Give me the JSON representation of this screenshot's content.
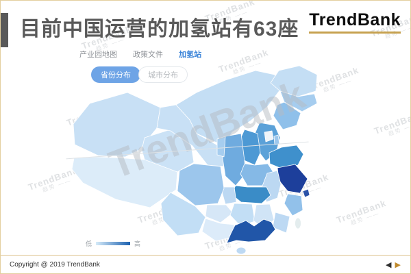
{
  "page": {
    "title": "目前中国运营的加氢站有63座",
    "logo_text": "TrendBank",
    "watermark": {
      "text": "TrendBank",
      "subtext": "趋势 ——"
    },
    "footer": {
      "copyright": "Copyright @ 2019 TrendBank",
      "prev_arrow": "◀",
      "next_arrow": "▶"
    }
  },
  "tool": {
    "tabs": [
      {
        "label": "产业园地图",
        "active": false
      },
      {
        "label": "政策文件",
        "active": false
      },
      {
        "label": "加氢站",
        "active": true
      }
    ],
    "view_toggles": [
      {
        "label": "省份分布",
        "active": true
      },
      {
        "label": "城市分布",
        "active": false
      }
    ],
    "legend": {
      "low_label": "低",
      "high_label": "高"
    }
  },
  "colors": {
    "frame_gold": "#e3cf9e",
    "logo_underline_gold": "#c6a14f",
    "title_gray": "#595959",
    "tab_active_blue": "#3e86d9",
    "pill_active_blue": "#6ea4e6",
    "legend_gradient_start": "#d6ebf9",
    "legend_gradient_end": "#1b61b0",
    "watermark_gray": "#c5c9cd",
    "arrow_gold": "#c08a2d"
  },
  "chart_data": {
    "type": "heatmap",
    "subtype": "choropleth-china-map",
    "title": "目前中国运营的加氢站有63座",
    "total_stations_in_operation": 63,
    "legend": {
      "low": "低",
      "high": "高"
    },
    "regions": [
      {
        "name": "新疆",
        "level": "低",
        "color": "#c8e0f5"
      },
      {
        "name": "西藏",
        "level": "很低",
        "color": "#dcecf9"
      },
      {
        "name": "青海",
        "level": "低",
        "color": "#cbe2f6"
      },
      {
        "name": "甘肃",
        "level": "低",
        "color": "#c8e0f5"
      },
      {
        "name": "内蒙古",
        "level": "低",
        "color": "#c4def4"
      },
      {
        "name": "黑龙江",
        "level": "低",
        "color": "#c4def4"
      },
      {
        "name": "吉林",
        "level": "中",
        "color": "#a6cdef"
      },
      {
        "name": "辽宁",
        "level": "中",
        "color": "#8fc0ea"
      },
      {
        "name": "北京",
        "level": "未着色",
        "color": "#f1f5f9"
      },
      {
        "name": "天津",
        "level": "中",
        "color": "#9dc7ec"
      },
      {
        "name": "河北",
        "level": "较高",
        "color": "#5ba1d8"
      },
      {
        "name": "山西",
        "level": "较高",
        "color": "#4d99d4"
      },
      {
        "name": "陕西",
        "level": "中",
        "color": "#6fabdf"
      },
      {
        "name": "宁夏",
        "level": "中",
        "color": "#a6cdef"
      },
      {
        "name": "山东",
        "level": "较高",
        "color": "#3f90cc"
      },
      {
        "name": "河南",
        "level": "中",
        "color": "#85b9e6"
      },
      {
        "name": "江苏",
        "level": "最高",
        "color": "#1d3f9b"
      },
      {
        "name": "安徽",
        "level": "低",
        "color": "#bcd8f2"
      },
      {
        "name": "上海",
        "level": "高",
        "color": "#2a52a8"
      },
      {
        "name": "浙江",
        "level": "中",
        "color": "#92c1ea"
      },
      {
        "name": "湖北",
        "level": "较高",
        "color": "#3a8cc7"
      },
      {
        "name": "重庆",
        "level": "低",
        "color": "#bcd8f2"
      },
      {
        "name": "四川",
        "level": "中",
        "color": "#9cc6ec"
      },
      {
        "name": "贵州",
        "level": "很低",
        "color": "#d6e7f7"
      },
      {
        "name": "湖南",
        "level": "低",
        "color": "#c2def5"
      },
      {
        "name": "江西",
        "level": "很低",
        "color": "#d0e4f6"
      },
      {
        "name": "福建",
        "level": "低",
        "color": "#bdd9f3"
      },
      {
        "name": "云南",
        "level": "低",
        "color": "#c2def5"
      },
      {
        "name": "广西",
        "level": "很低",
        "color": "#dcebf9"
      },
      {
        "name": "广东",
        "level": "高",
        "color": "#2156a8"
      },
      {
        "name": "海南",
        "level": "低",
        "color": "#bdd9f3"
      },
      {
        "name": "台湾",
        "level": "无数据",
        "color": "#e4edee"
      }
    ]
  }
}
